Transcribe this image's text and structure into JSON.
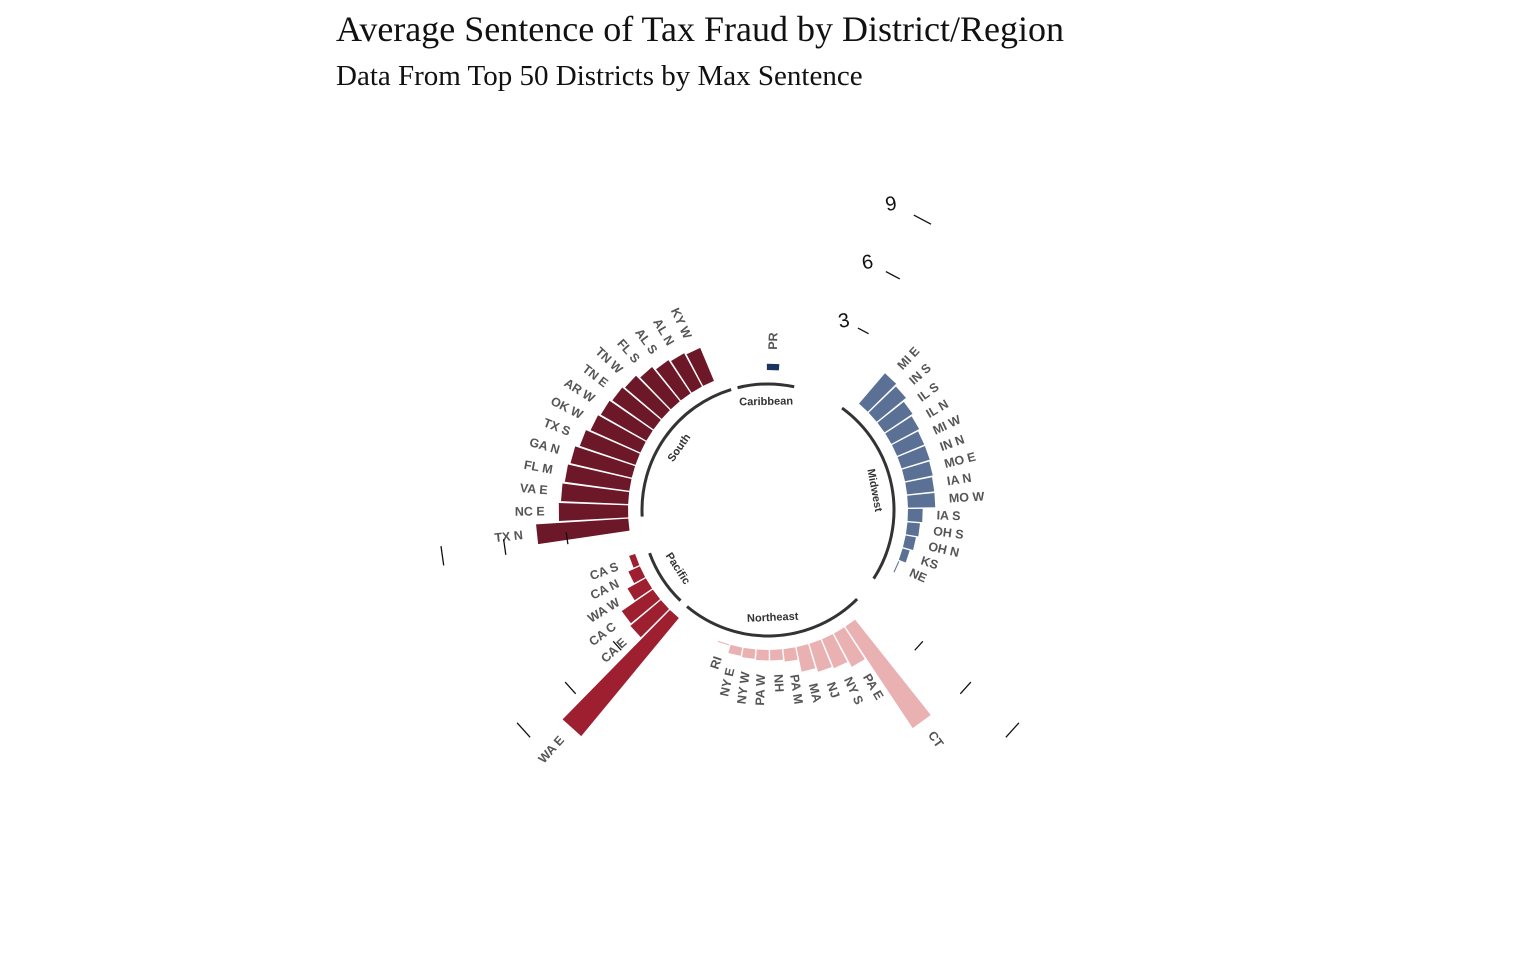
{
  "title": "Average Sentence of Tax Fraud by District/Region",
  "subtitle": "Data From Top 50 Districts by Max Sentence",
  "chart_data": {
    "type": "bar",
    "coordinate_system": "polar",
    "title": "Average Sentence of Tax Fraud by District/Region",
    "subtitle": "Data From Top 50 Districts by Max Sentence",
    "radial_ticks": [
      "3",
      "6",
      "9"
    ],
    "regions": [
      {
        "name": "Caribbean",
        "color": "#1b3560"
      },
      {
        "name": "Midwest",
        "color": "#5a7094"
      },
      {
        "name": "Northeast",
        "color": "#eab1b3"
      },
      {
        "name": "Pacific",
        "color": "#9d1f30"
      },
      {
        "name": "South",
        "color": "#6c1828"
      }
    ],
    "series": [
      {
        "name": "Caribbean",
        "categories": [
          "PR"
        ],
        "values": [
          0.3
        ]
      },
      {
        "name": "Midwest",
        "categories": [
          "MI E",
          "IN S",
          "IL S",
          "IL N",
          "MI W",
          "IN N",
          "MO E",
          "IA N",
          "MO W",
          "IA S",
          "OH S",
          "OH N",
          "KS",
          "NE"
        ],
        "values": [
          1.9,
          1.8,
          1.6,
          1.5,
          1.4,
          1.4,
          1.35,
          1.3,
          1.3,
          0.7,
          0.6,
          0.5,
          0.35,
          0.05
        ]
      },
      {
        "name": "Northeast",
        "categories": [
          "CT",
          "PA E",
          "NY S",
          "NJ",
          "MA",
          "PA M",
          "NH",
          "PA W",
          "NY W",
          "NY E",
          "RI"
        ],
        "values": [
          5.8,
          1.8,
          1.5,
          1.4,
          1.2,
          0.6,
          0.5,
          0.5,
          0.45,
          0.4,
          0.05
        ]
      },
      {
        "name": "Pacific",
        "categories": [
          "WA E",
          "CA E",
          "CA C",
          "WA W",
          "CA N",
          "CA S"
        ],
        "values": [
          7.3,
          1.9,
          1.8,
          1.0,
          0.6,
          0.3
        ]
      },
      {
        "name": "South",
        "categories": [
          "TX N",
          "NC E",
          "VA E",
          "FL M",
          "GA N",
          "TX S",
          "OK W",
          "AR W",
          "TN E",
          "TN W",
          "FL S",
          "AL S",
          "AL N",
          "KY W"
        ],
        "values": [
          4.4,
          3.3,
          3.2,
          3.1,
          3.0,
          2.8,
          2.6,
          2.5,
          2.4,
          2.3,
          2.1,
          1.9,
          1.8,
          1.7
        ]
      }
    ]
  }
}
